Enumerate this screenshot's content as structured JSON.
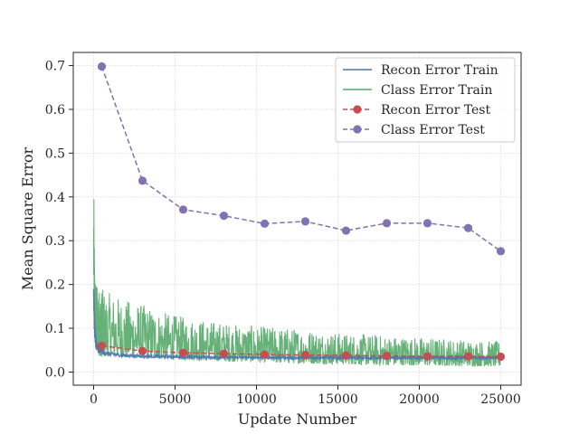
{
  "chart_data": {
    "type": "line",
    "title": "",
    "xlabel": "Update Number",
    "ylabel": "Mean Square Error",
    "xlim": [
      -1250,
      26250
    ],
    "ylim": [
      -0.03,
      0.73
    ],
    "x_ticks": [
      0,
      5000,
      10000,
      15000,
      20000,
      25000
    ],
    "x_tick_labels": [
      "0",
      "5000",
      "10000",
      "15000",
      "20000",
      "25000"
    ],
    "y_ticks": [
      0.0,
      0.1,
      0.2,
      0.3,
      0.4,
      0.5,
      0.6,
      0.7
    ],
    "y_tick_labels": [
      "0.0",
      "0.1",
      "0.2",
      "0.3",
      "0.4",
      "0.5",
      "0.6",
      "0.7"
    ],
    "grid": true,
    "legend_position": "top-right",
    "series": [
      {
        "name": "Recon Error Train",
        "style": "solid",
        "color": "#4c72b0",
        "envelope": {
          "x": [
            0,
            30,
            80,
            150,
            300,
            600,
            1000,
            2000,
            3000,
            5000,
            7500,
            10000,
            12500,
            15000,
            17500,
            20000,
            22500,
            25000
          ],
          "lower": [
            0.16,
            0.1,
            0.07,
            0.055,
            0.045,
            0.04,
            0.037,
            0.034,
            0.033,
            0.032,
            0.031,
            0.031,
            0.03,
            0.03,
            0.03,
            0.03,
            0.03,
            0.03
          ],
          "upper": [
            0.22,
            0.2,
            0.11,
            0.075,
            0.058,
            0.05,
            0.046,
            0.042,
            0.04,
            0.038,
            0.037,
            0.036,
            0.036,
            0.036,
            0.035,
            0.035,
            0.035,
            0.035
          ]
        }
      },
      {
        "name": "Class Error Train",
        "style": "solid",
        "color": "#55a868",
        "envelope": {
          "x": [
            0,
            50,
            100,
            200,
            500,
            1000,
            2000,
            3000,
            4000,
            5000,
            7500,
            10000,
            12500,
            15000,
            17500,
            20000,
            22500,
            25000
          ],
          "lower": [
            0.2,
            0.08,
            0.05,
            0.04,
            0.035,
            0.035,
            0.033,
            0.032,
            0.03,
            0.028,
            0.025,
            0.022,
            0.02,
            0.018,
            0.016,
            0.015,
            0.014,
            0.013
          ],
          "upper": [
            0.45,
            0.3,
            0.24,
            0.2,
            0.19,
            0.18,
            0.165,
            0.155,
            0.14,
            0.13,
            0.115,
            0.105,
            0.1,
            0.09,
            0.085,
            0.08,
            0.075,
            0.07
          ]
        }
      },
      {
        "name": "Recon Error Test",
        "style": "dashed",
        "marker": "circle",
        "color": "#c44e52",
        "x": [
          500,
          3000,
          5500,
          8000,
          10500,
          13000,
          15500,
          18000,
          20500,
          23000,
          25000
        ],
        "y": [
          0.06,
          0.048,
          0.044,
          0.042,
          0.04,
          0.039,
          0.038,
          0.037,
          0.036,
          0.036,
          0.035
        ]
      },
      {
        "name": "Class Error Test",
        "style": "dashed",
        "marker": "circle",
        "color": "#8172b2",
        "x": [
          500,
          3000,
          5500,
          8000,
          10500,
          13000,
          15500,
          18000,
          20500,
          23000,
          25000
        ],
        "y": [
          0.698,
          0.437,
          0.371,
          0.357,
          0.339,
          0.344,
          0.323,
          0.34,
          0.34,
          0.329,
          0.276
        ]
      }
    ]
  }
}
